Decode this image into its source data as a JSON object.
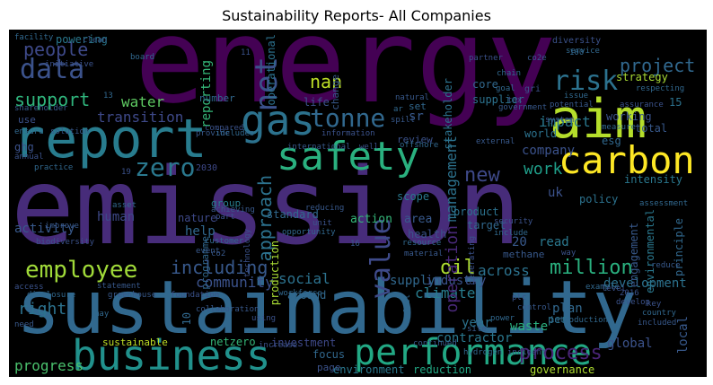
{
  "title": "Sustainability Reports- All Companies",
  "words": {
    "energy": "energy",
    "emission": "emission",
    "sustainability": "sustainability",
    "report": "report",
    "aim": "aim",
    "safety": "safety",
    "gas": "gas",
    "carbon": "carbon",
    "business": "business",
    "performance": "performance",
    "data": "data",
    "tonne": "tonne",
    "zero": "zero",
    "employee": "employee",
    "risk": "risk",
    "people": "people",
    "net": "net",
    "project": "project",
    "value": "value",
    "nan": "nan",
    "support": "support",
    "water": "water",
    "reporting": "reporting",
    "transition": "transition",
    "including": "including",
    "oil": "oil",
    "million": "million",
    "community": "community",
    "social": "social",
    "climate": "climate",
    "process": "process",
    "work": "work",
    "company": "company",
    "new": "new",
    "impact": "impact",
    "management": "management",
    "operation": "operation",
    "approach": "approach",
    "human": "human",
    "help": "help",
    "activity": "activity",
    "right": "right",
    "progress": "progress",
    "sustainable": "sustainable",
    "netzero": "netzero",
    "investment": "investment",
    "focus": "focus",
    "environment": "environment",
    "reduction": "reduction",
    "governance": "governance",
    "global": "global",
    "waste": "waste",
    "plan": "plan",
    "year": "year",
    "contractor": "contractor",
    "across": "across",
    "supply": "supply",
    "industry": "industry",
    "development": "development",
    "local": "local",
    "group": "group",
    "nature": "nature",
    "standard": "standard",
    "action": "action",
    "area": "area",
    "product": "product",
    "health": "health",
    "target": "target",
    "uk": "uk",
    "read": "read",
    "policy": "policy",
    "intensity": "intensity",
    "engagement": "engagement",
    "principle": "principle",
    "environmental": "environmental",
    "world": "world",
    "esg": "esg",
    "total": "total",
    "working": "working",
    "strategy": "strategy",
    "supplier": "supplier",
    "core": "core",
    "stakeholder": "stakeholder",
    "review": "review",
    "scope": "scope",
    "sr": "sr",
    "set": "set",
    "life": "life",
    "operational": "operational",
    "number": "number",
    "powering": "powering",
    "ghg": "ghg",
    "production": "production",
    "around": "around",
    "methane": "methane",
    "programme": "programme",
    "per": "per",
    "page": "page",
    "change": "change",
    "n20": "20",
    "n15": "15",
    "n10": "10",
    "n2030": "2030",
    "n2016": "2016",
    "n100": "100",
    "n16": "16",
    "n19": "19",
    "n13": "13",
    "n11": "11",
    "diversity": "diversity",
    "service": "service",
    "co2e": "co2e",
    "gri": "gri",
    "issue": "issue",
    "potential": "potential",
    "system": "system",
    "measure": "measure",
    "partner": "partner",
    "chain": "chain",
    "natural": "natural",
    "board": "board",
    "initiative": "initiative",
    "facility": "facility",
    "shareholder": "shareholder",
    "use": "use",
    "ensure": "ensure",
    "solution": "solution",
    "annual": "annual",
    "practice": "practice",
    "provide": "provide",
    "compared": "compared",
    "includes": "includes",
    "international": "international",
    "well": "well",
    "offshore": "offshore",
    "improve": "improve",
    "biodiversity": "biodiversity",
    "asset": "asset",
    "achieving": "achieving",
    "part": "part",
    "customer": "customer",
    "co2": "co2",
    "technology": "technology",
    "opportunity": "opportunity",
    "reducing": "reducing",
    "unit": "unit",
    "resource": "resource",
    "material": "material",
    "security": "security",
    "include": "include",
    "statement": "statement",
    "access": "access",
    "disclosure": "disclosure",
    "greenhouse": "greenhouse",
    "foundation": "foundation",
    "workforce": "workforce",
    "collaboration": "collaboration",
    "using": "using",
    "may": "may",
    "need": "need",
    "plc": "plc",
    "power": "power",
    "site": "site",
    "increase": "increase",
    "hydrogen": "hydrogen",
    "continued": "continued",
    "incident": "incident",
    "introduction": "introduction",
    "control": "control",
    "key": "key",
    "country": "country",
    "included": "included",
    "develop": "develop",
    "example": "example",
    "reduce": "reduce",
    "way": "way",
    "assessment": "assessment",
    "external": "external",
    "level": "level",
    "fuel": "fuel",
    "event": "event",
    "tax": "tax",
    "goal": "goal",
    "government": "government",
    "information": "information",
    "ar": "ar",
    "spill": "spill",
    "assurance": "assurance",
    "respecting": "respecting",
    "clean": "clean",
    "generating": "generating"
  }
}
